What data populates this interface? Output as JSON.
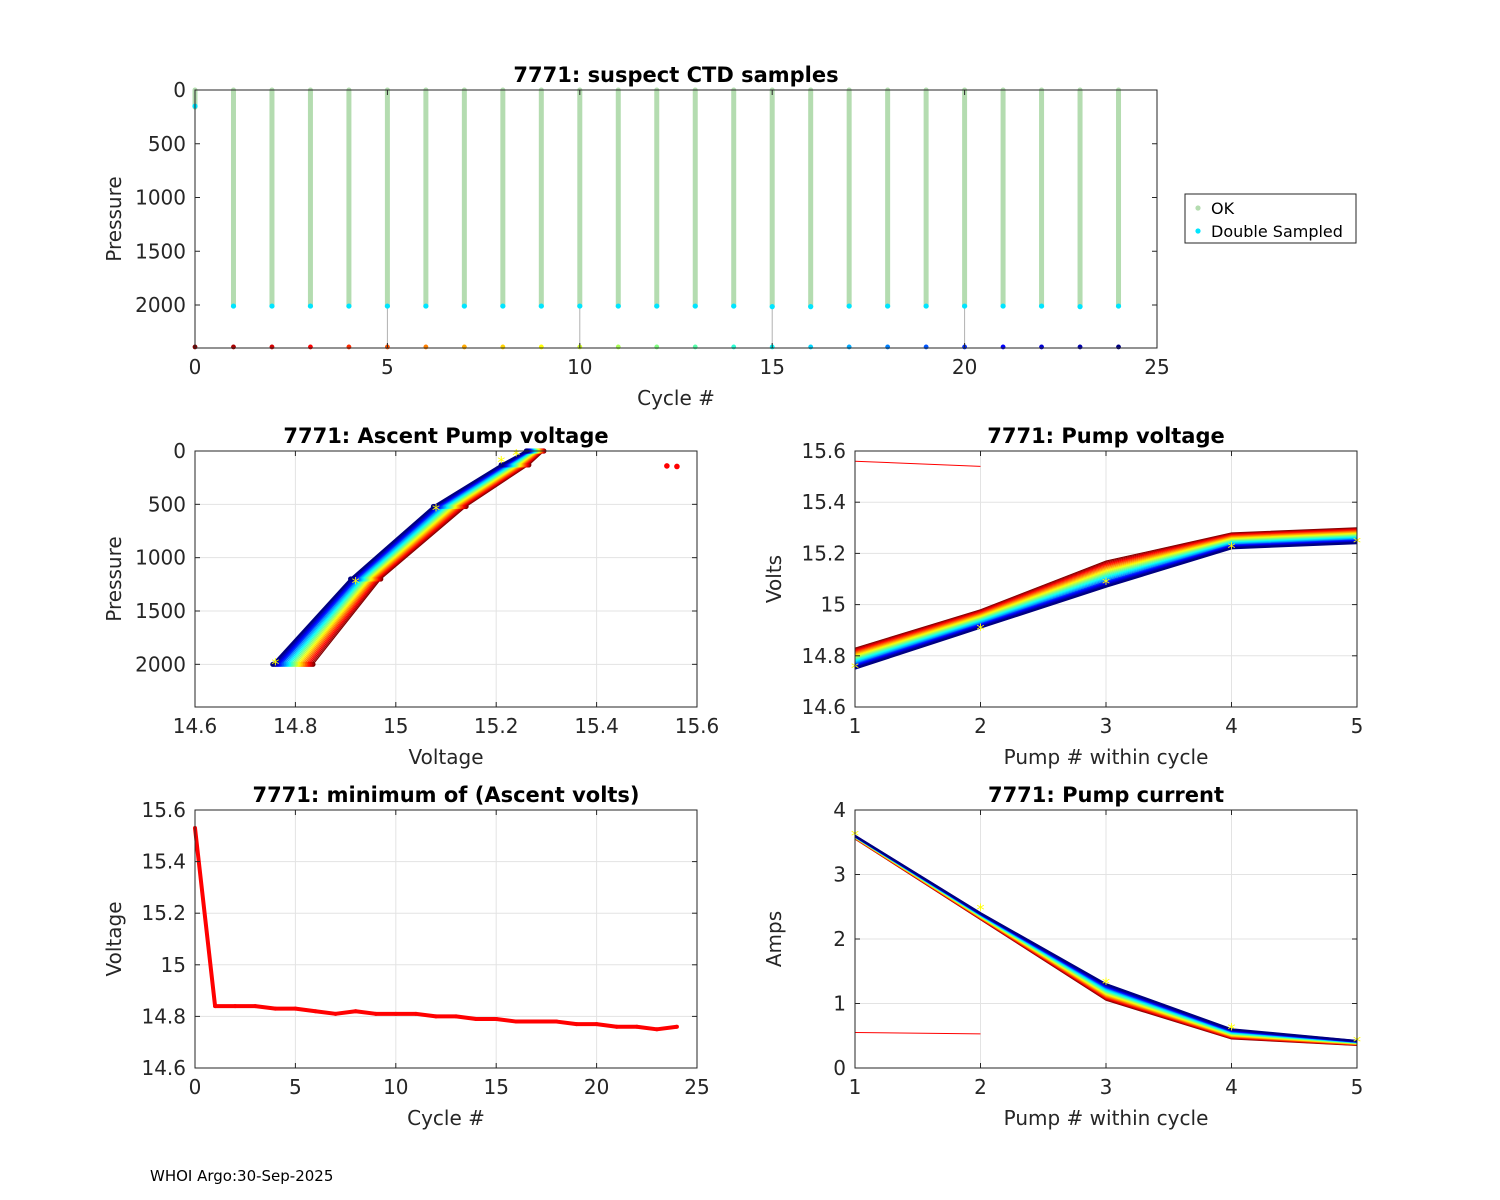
{
  "figure": {
    "footer": "WHOI Argo:30-Sep-2025",
    "colors": {
      "ok": "#b4dcb0",
      "double": "#00e5ff",
      "grid": "#e3e3e3",
      "min_line": "#ff0000",
      "marker": "#ffff00"
    }
  },
  "chart_data": [
    {
      "id": "ctd",
      "type": "scatter",
      "title": "7771: suspect CTD samples",
      "xlabel": "Cycle #",
      "ylabel": "Pressure",
      "xlim": [
        0,
        25
      ],
      "ylim": [
        0,
        2400
      ],
      "y_reversed": true,
      "grid": false,
      "xticks": [
        0,
        5,
        10,
        15,
        20,
        25
      ],
      "yticks": [
        0,
        500,
        1000,
        1500,
        2000
      ],
      "legend_position": "right",
      "legend": [
        "OK",
        "Double Sampled"
      ],
      "cycles": [
        0,
        1,
        2,
        3,
        4,
        5,
        6,
        7,
        8,
        9,
        10,
        11,
        12,
        13,
        14,
        15,
        16,
        17,
        18,
        19,
        20,
        21,
        22,
        23,
        24
      ],
      "ok_top": 0,
      "ok_bottom": [
        160,
        2010,
        2010,
        2010,
        2010,
        2010,
        2010,
        2010,
        2010,
        2010,
        2010,
        2010,
        2010,
        2010,
        2010,
        2015,
        2015,
        2010,
        2010,
        2010,
        2010,
        2010,
        2010,
        2015,
        2010
      ],
      "double_sampled": [
        [
          0,
          150
        ],
        [
          1,
          2010
        ],
        [
          2,
          2010
        ],
        [
          3,
          2010
        ],
        [
          4,
          2010
        ],
        [
          5,
          2010
        ],
        [
          6,
          2010
        ],
        [
          7,
          2010
        ],
        [
          8,
          2010
        ],
        [
          9,
          2010
        ],
        [
          10,
          2010
        ],
        [
          11,
          2010
        ],
        [
          12,
          2010
        ],
        [
          13,
          2010
        ],
        [
          14,
          2010
        ],
        [
          15,
          2015
        ],
        [
          16,
          2015
        ],
        [
          17,
          2010
        ],
        [
          18,
          2010
        ],
        [
          19,
          2010
        ],
        [
          20,
          2010
        ],
        [
          21,
          2010
        ],
        [
          22,
          2010
        ],
        [
          23,
          2015
        ],
        [
          24,
          2010
        ]
      ],
      "bottom_marker_pressure": 2390,
      "stem_cycles": [
        5,
        10,
        15,
        20
      ]
    },
    {
      "id": "ascent",
      "type": "line",
      "title": "7771: Ascent Pump voltage",
      "xlabel": "Voltage",
      "ylabel": "Pressure",
      "xlim": [
        14.6,
        15.6
      ],
      "ylim": [
        0,
        2400
      ],
      "y_reversed": true,
      "grid": true,
      "xticks": [
        14.6,
        14.8,
        15,
        15.2,
        15.4,
        15.6
      ],
      "yticks": [
        0,
        500,
        1000,
        1500,
        2000
      ],
      "pressures": [
        2000,
        1200,
        520,
        130,
        0
      ],
      "voltage_start": [
        14.835,
        14.97,
        15.14,
        15.265,
        15.295
      ],
      "voltage_end": [
        14.755,
        14.91,
        15.075,
        15.21,
        15.26
      ],
      "outliers": [
        [
          15.54,
          140
        ],
        [
          15.56,
          145
        ]
      ],
      "marker_points": [
        [
          14.76,
          2000
        ],
        [
          14.92,
          1240
        ],
        [
          15.08,
          560
        ],
        [
          15.21,
          110
        ],
        [
          15.24,
          40
        ]
      ]
    },
    {
      "id": "pumpv",
      "type": "line",
      "title": "7771: Pump voltage",
      "xlabel": "Pump # within cycle",
      "ylabel": "Volts",
      "xlim": [
        1,
        5
      ],
      "ylim": [
        14.6,
        15.6
      ],
      "grid": true,
      "xticks": [
        1,
        2,
        3,
        4,
        5
      ],
      "yticks": [
        14.6,
        14.8,
        15,
        15.2,
        15.4,
        15.6
      ],
      "x": [
        1,
        2,
        3,
        4,
        5
      ],
      "start": [
        14.83,
        14.98,
        15.17,
        15.28,
        15.3
      ],
      "end": [
        14.75,
        14.91,
        15.07,
        15.22,
        15.24
      ],
      "outlier_line": [
        [
          1,
          15.56
        ],
        [
          2,
          15.54
        ]
      ],
      "markers": [
        [
          1,
          14.75
        ],
        [
          2,
          14.9
        ],
        [
          3,
          15.08
        ],
        [
          4,
          15.22
        ],
        [
          5,
          15.24
        ]
      ]
    },
    {
      "id": "minv",
      "type": "line",
      "title": "7771: minimum of (Ascent volts)",
      "xlabel": "Cycle #",
      "ylabel": "Voltage",
      "xlim": [
        0,
        25
      ],
      "ylim": [
        14.6,
        15.6
      ],
      "grid": true,
      "xticks": [
        0,
        5,
        10,
        15,
        20,
        25
      ],
      "yticks": [
        14.6,
        14.8,
        15,
        15.2,
        15.4,
        15.6
      ],
      "x": [
        0,
        1,
        2,
        3,
        4,
        5,
        6,
        7,
        8,
        9,
        10,
        11,
        12,
        13,
        14,
        15,
        16,
        17,
        18,
        19,
        20,
        21,
        22,
        23,
        24
      ],
      "y": [
        15.53,
        14.84,
        14.84,
        14.84,
        14.83,
        14.83,
        14.82,
        14.81,
        14.82,
        14.81,
        14.81,
        14.81,
        14.8,
        14.8,
        14.79,
        14.79,
        14.78,
        14.78,
        14.78,
        14.77,
        14.77,
        14.76,
        14.76,
        14.75,
        14.76
      ]
    },
    {
      "id": "pumpc",
      "type": "line",
      "title": "7771: Pump current",
      "xlabel": "Pump # within cycle",
      "ylabel": "Amps",
      "xlim": [
        1,
        5
      ],
      "ylim": [
        0,
        4
      ],
      "grid": true,
      "xticks": [
        1,
        2,
        3,
        4,
        5
      ],
      "yticks": [
        0,
        1,
        2,
        3,
        4
      ],
      "x": [
        1,
        2,
        3,
        4,
        5
      ],
      "start": [
        3.55,
        2.3,
        1.05,
        0.45,
        0.35
      ],
      "end": [
        3.6,
        2.4,
        1.3,
        0.6,
        0.42
      ],
      "outlier_line": [
        [
          1,
          0.55
        ],
        [
          2,
          0.53
        ]
      ],
      "markers": [
        [
          1,
          3.6
        ],
        [
          2,
          2.45
        ],
        [
          3,
          1.3
        ],
        [
          4,
          0.6
        ],
        [
          5,
          0.4
        ]
      ]
    }
  ]
}
